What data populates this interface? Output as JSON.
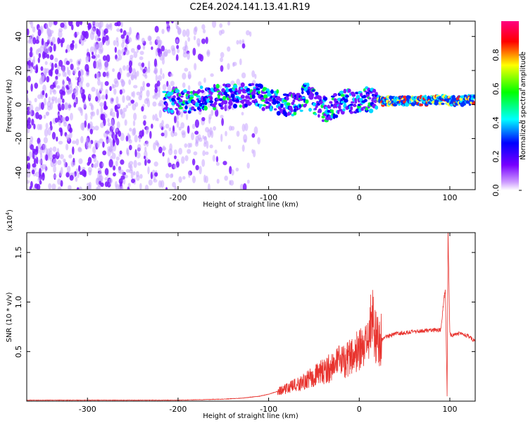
{
  "title": "C2E4.2024.141.13.41.R19",
  "chart_data": [
    {
      "type": "heatmap",
      "xlabel": "Height of straight line (km)",
      "ylabel": "Frequency (Hz)",
      "xlim": [
        -367,
        128
      ],
      "ylim": [
        -50,
        49
      ],
      "xticks": [
        "-300",
        "-200",
        "-100",
        "0",
        "100"
      ],
      "xtick_values": [
        -300,
        -200,
        -100,
        0,
        100
      ],
      "yticks": [
        "40",
        "20",
        "0",
        "-20",
        "-40"
      ],
      "ytick_values": [
        40,
        20,
        0,
        -20,
        -40
      ],
      "colorbar": {
        "label": "Normalized spectral amplitude",
        "range": [
          0,
          1
        ],
        "ticks": [
          "0.0",
          "0.2",
          "0.4",
          "0.6",
          "0.8"
        ],
        "tick_values": [
          0.0,
          0.2,
          0.4,
          0.6,
          0.8
        ],
        "colormap": [
          "#ffffff",
          "#cc99ff",
          "#7700ff",
          "#0000ff",
          "#00ffff",
          "#00ff00",
          "#ffff00",
          "#ff0000",
          "#ff0080"
        ]
      },
      "ridge": {
        "x": [
          -215,
          -200,
          -180,
          -160,
          -140,
          -120,
          -100,
          -90,
          -80,
          -70,
          -60,
          -50,
          -40,
          -30,
          -20,
          -10,
          0,
          10,
          30,
          50,
          70,
          90,
          100,
          110,
          128
        ],
        "y": [
          2,
          2,
          3,
          4,
          5,
          5,
          4,
          2,
          0,
          -1,
          6,
          2,
          -3,
          -2,
          1,
          2,
          2,
          3,
          2,
          2,
          2,
          3,
          2,
          2,
          3
        ]
      },
      "noise_extent_x": [
        -367,
        -110
      ]
    },
    {
      "type": "line",
      "xlabel": "Height of straight line (km)",
      "ylabel": "SNR (10 * v/v)",
      "y_multiplier": "(x10",
      "y_multiplier_exp": "4",
      "y_multiplier_close": ")",
      "xlim": [
        -367,
        128
      ],
      "ylim": [
        0,
        1.7
      ],
      "xticks": [
        "-300",
        "-200",
        "-100",
        "0",
        "100"
      ],
      "xtick_values": [
        -300,
        -200,
        -100,
        0,
        100
      ],
      "yticks": [
        "0.5",
        "1.0",
        "1.5"
      ],
      "ytick_values": [
        0.5,
        1.0,
        1.5
      ],
      "color": "#e8332e",
      "series": [
        {
          "x": [
            -367,
            -300,
            -200,
            -150,
            -130,
            -110,
            -100,
            -90,
            -80,
            -70,
            -60,
            -50,
            -40,
            -30,
            -20,
            -10,
            0,
            10,
            12,
            20,
            30,
            40,
            60,
            80,
            90,
            95,
            97,
            98,
            100,
            102,
            105,
            110,
            120,
            128
          ],
          "y": [
            0.01,
            0.01,
            0.01,
            0.02,
            0.03,
            0.05,
            0.07,
            0.1,
            0.13,
            0.16,
            0.2,
            0.25,
            0.3,
            0.35,
            0.4,
            0.45,
            0.5,
            0.55,
            0.92,
            0.6,
            0.65,
            0.68,
            0.7,
            0.72,
            0.72,
            1.15,
            0.05,
            1.7,
            0.68,
            0.66,
            0.67,
            0.68,
            0.66,
            0.6
          ]
        }
      ]
    }
  ]
}
